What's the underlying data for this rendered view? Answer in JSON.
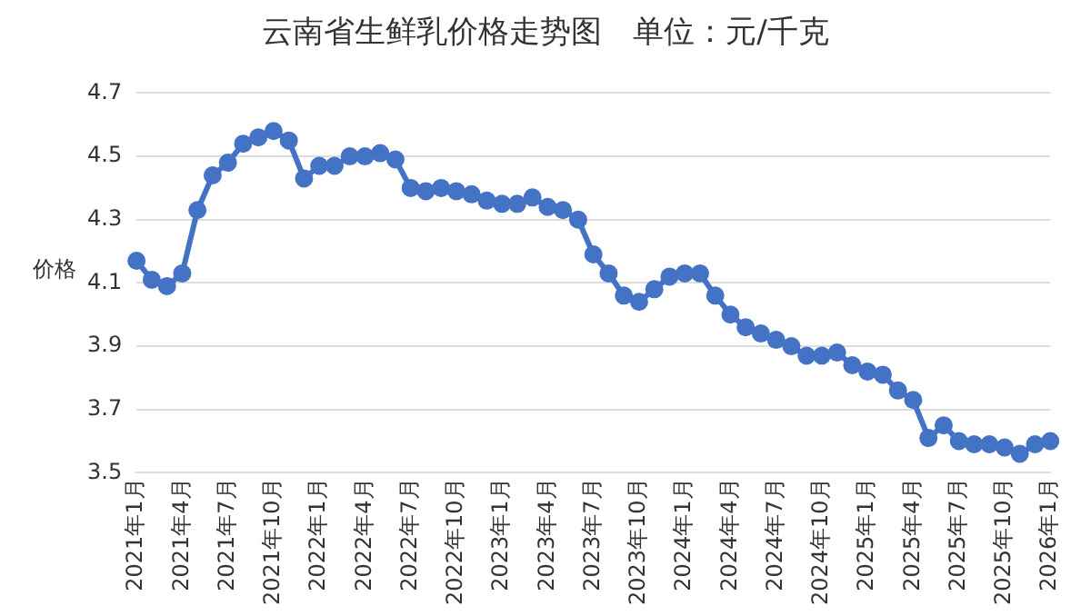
{
  "chart_data": {
    "type": "line",
    "title": "云南省生鲜乳价格走势图　单位：元/千克",
    "ylabel": "价格",
    "categories": [
      "2021年1月",
      null,
      null,
      "2021年4月",
      null,
      null,
      "2021年7月",
      null,
      null,
      "2021年10月",
      null,
      null,
      "2022年1月",
      null,
      null,
      "2022年4月",
      null,
      null,
      "2022年7月",
      null,
      null,
      "2022年10月",
      null,
      null,
      "2023年1月",
      null,
      null,
      "2023年4月",
      null,
      null,
      "2023年7月",
      null,
      null,
      "2023年10月",
      null,
      null,
      "2024年1月",
      null,
      null,
      "2024年4月",
      null,
      null,
      "2024年7月",
      null,
      null,
      "2024年10月",
      null,
      null,
      "2025年1月",
      null,
      null,
      "2025年4月",
      null,
      null,
      "2025年7月",
      null,
      null,
      "2025年10月",
      null,
      null,
      "2026年1月"
    ],
    "series": [
      {
        "color": "#4472c4",
        "values": [
          4.17,
          4.11,
          4.09,
          4.13,
          4.33,
          4.44,
          4.48,
          4.54,
          4.56,
          4.58,
          4.55,
          4.43,
          4.47,
          4.47,
          4.5,
          4.5,
          4.51,
          4.49,
          4.4,
          4.39,
          4.4,
          4.39,
          4.38,
          4.36,
          4.35,
          4.35,
          4.37,
          4.34,
          4.33,
          4.3,
          4.19,
          4.13,
          4.06,
          4.04,
          4.08,
          4.12,
          4.13,
          4.13,
          4.06,
          4.0,
          3.96,
          3.94,
          3.92,
          3.9,
          3.87,
          3.87,
          3.88,
          3.84,
          3.82,
          3.81,
          3.76,
          3.73,
          3.61,
          3.65,
          3.6,
          3.59,
          3.59,
          3.58,
          3.56,
          3.59,
          3.6
        ]
      }
    ],
    "ylim": [
      3.5,
      4.7
    ],
    "yticks": [
      3.5,
      3.7,
      3.9,
      4.1,
      4.3,
      4.5,
      4.7
    ],
    "grid": "y",
    "marker": "circle",
    "line_style": "solid",
    "legend": false
  }
}
